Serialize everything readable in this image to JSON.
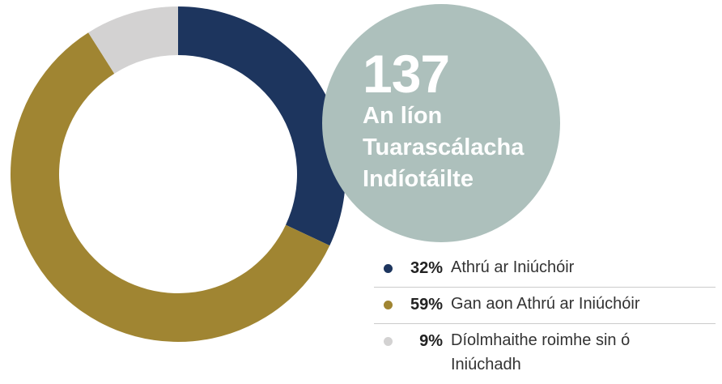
{
  "chart_data": {
    "type": "donut",
    "center_value": 137,
    "center_label": "An líon Tuarascálacha Indíotáilte",
    "categories": [
      "Athrú ar Iniúchóir",
      "Gan aon Athrú ar Iniúchóir",
      "Díolmhaithe roimhe sin ó Iniúchadh"
    ],
    "values": [
      32,
      59,
      9
    ],
    "value_labels": [
      "32%",
      "59%",
      "9%"
    ],
    "colors": [
      "#1d355e",
      "#a08532",
      "#d3d2d2"
    ]
  }
}
